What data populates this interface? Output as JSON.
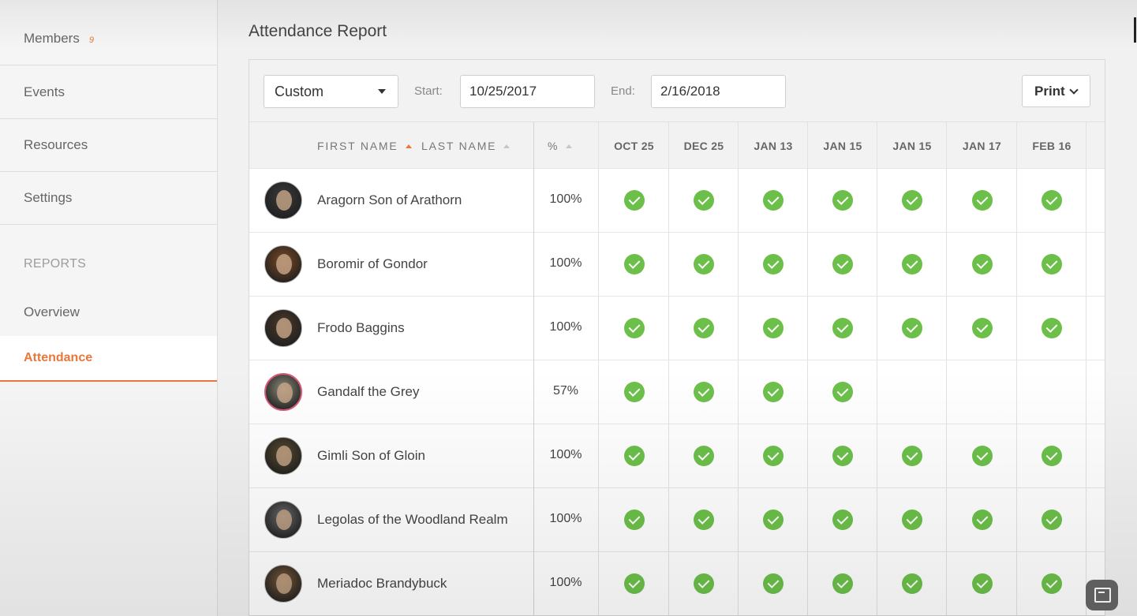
{
  "sidebar": {
    "members": {
      "label": "Members",
      "count": "9"
    },
    "events": "Events",
    "resources": "Resources",
    "settings": "Settings",
    "reports_heading": "REPORTS",
    "overview": "Overview",
    "attendance": "Attendance"
  },
  "page": {
    "title": "Attendance Report"
  },
  "toolbar": {
    "range_select": "Custom",
    "start_label": "Start:",
    "start_value": "10/25/2017",
    "end_label": "End:",
    "end_value": "2/16/2018",
    "print_label": "Print"
  },
  "table": {
    "headers": {
      "first_name": "FIRST NAME",
      "last_name": "LAST NAME",
      "percent": "%"
    },
    "dates": [
      "OCT 25",
      "DEC 25",
      "JAN 13",
      "JAN 15",
      "JAN 15",
      "JAN 17",
      "FEB 16"
    ],
    "rows": [
      {
        "name": "Aragorn Son of Arathorn",
        "percent": "100%",
        "attended": [
          true,
          true,
          true,
          true,
          true,
          true,
          true
        ],
        "avatar_color": "#3a3a3a"
      },
      {
        "name": "Boromir of Gondor",
        "percent": "100%",
        "attended": [
          true,
          true,
          true,
          true,
          true,
          true,
          true
        ],
        "avatar_color": "#7a4a26"
      },
      {
        "name": "Frodo Baggins",
        "percent": "100%",
        "attended": [
          true,
          true,
          true,
          true,
          true,
          true,
          true
        ],
        "avatar_color": "#4a3a2a"
      },
      {
        "name": "Gandalf the Grey",
        "percent": "57%",
        "attended": [
          true,
          true,
          true,
          true,
          false,
          false,
          false
        ],
        "avatar_color": "#8a8a7a"
      },
      {
        "name": "Gimli Son of Gloin",
        "percent": "100%",
        "attended": [
          true,
          true,
          true,
          true,
          true,
          true,
          true
        ],
        "avatar_color": "#5a4a30"
      },
      {
        "name": "Legolas of the Woodland Realm",
        "percent": "100%",
        "attended": [
          true,
          true,
          true,
          true,
          true,
          true,
          true
        ],
        "avatar_color": "#6a6a6a"
      },
      {
        "name": "Meriadoc Brandybuck",
        "percent": "100%",
        "attended": [
          true,
          true,
          true,
          true,
          true,
          true,
          true
        ],
        "avatar_color": "#7a5a3a"
      }
    ]
  },
  "colors": {
    "accent": "#e8773b",
    "check": "#6cc04a"
  }
}
